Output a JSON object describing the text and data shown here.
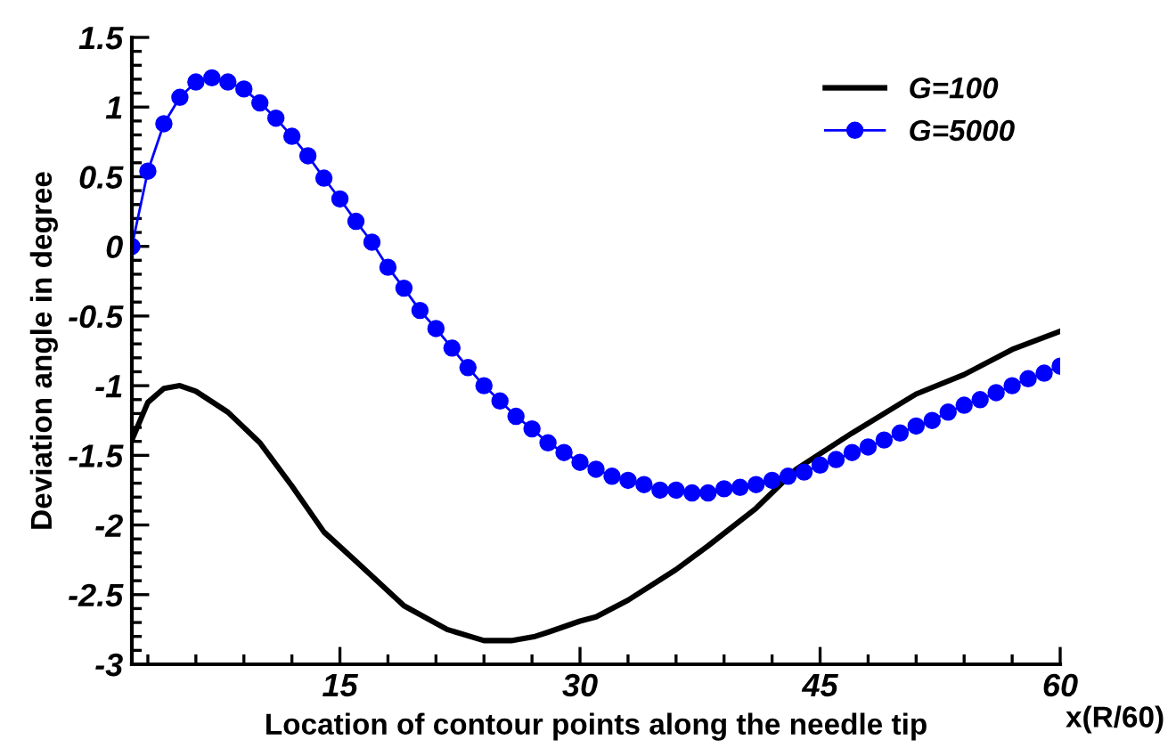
{
  "chart_data": {
    "type": "line",
    "xlabel": "Location of contour points along the needle tip",
    "ylabel": "Deviation angle in degree",
    "annotations": [
      "x(R/60)"
    ],
    "xlim": [
      2,
      60
    ],
    "xticks": [
      15,
      30,
      45,
      60
    ],
    "ylim": [
      -3,
      1.5
    ],
    "yticks": [
      -3,
      -2.5,
      -2,
      -1.5,
      -1,
      -0.5,
      0,
      0.5,
      1,
      1.5
    ],
    "grid": false,
    "legend": "top right",
    "series": [
      {
        "name": "G=100",
        "color": "#000000",
        "marker": "none",
        "x": [
          2,
          3,
          4,
          5,
          6,
          8,
          10,
          12,
          14,
          16,
          19,
          21.7,
          24,
          25.7,
          27.2,
          28,
          30,
          31,
          33,
          36,
          38,
          41,
          43.5,
          47,
          51,
          54,
          57,
          60
        ],
        "values": [
          -1.39,
          -1.12,
          -1.02,
          -1.0,
          -1.04,
          -1.19,
          -1.41,
          -1.72,
          -2.05,
          -2.26,
          -2.58,
          -2.75,
          -2.83,
          -2.83,
          -2.8,
          -2.77,
          -2.69,
          -2.66,
          -2.54,
          -2.32,
          -2.15,
          -1.88,
          -1.6,
          -1.34,
          -1.06,
          -0.92,
          -0.74,
          -0.61
        ]
      },
      {
        "name": "G=5000",
        "color": "#0000ff",
        "marker": "circle",
        "x": [
          2,
          3,
          4,
          5,
          6,
          7,
          8,
          9,
          10,
          11,
          12,
          13,
          14,
          15,
          16,
          17,
          18,
          19,
          20,
          21,
          22,
          23,
          24,
          25,
          26,
          27,
          28,
          29,
          30,
          31,
          32,
          33,
          34,
          35,
          36,
          37,
          38,
          39,
          40,
          41,
          42,
          43,
          44,
          45,
          46,
          47,
          48,
          49,
          50,
          51,
          52,
          53,
          54,
          55,
          56,
          57,
          58,
          59,
          60
        ],
        "values": [
          0.0,
          0.54,
          0.88,
          1.07,
          1.18,
          1.21,
          1.18,
          1.13,
          1.03,
          0.92,
          0.79,
          0.65,
          0.49,
          0.34,
          0.18,
          0.03,
          -0.15,
          -0.3,
          -0.46,
          -0.59,
          -0.73,
          -0.87,
          -1.0,
          -1.11,
          -1.22,
          -1.31,
          -1.41,
          -1.48,
          -1.55,
          -1.6,
          -1.65,
          -1.68,
          -1.71,
          -1.75,
          -1.75,
          -1.77,
          -1.77,
          -1.74,
          -1.73,
          -1.71,
          -1.68,
          -1.65,
          -1.62,
          -1.57,
          -1.53,
          -1.48,
          -1.44,
          -1.39,
          -1.34,
          -1.29,
          -1.25,
          -1.19,
          -1.14,
          -1.1,
          -1.05,
          -1.0,
          -0.95,
          -0.91,
          -0.86
        ]
      }
    ]
  }
}
